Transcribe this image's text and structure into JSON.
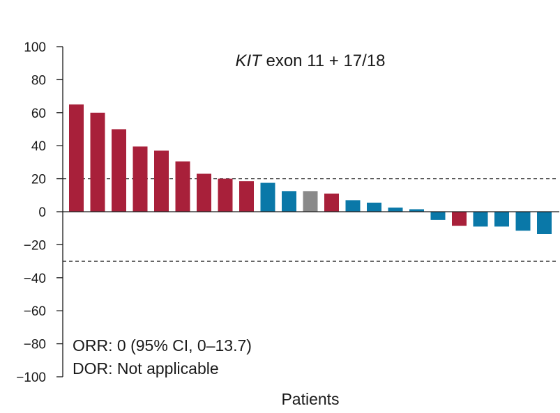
{
  "chart_data": {
    "type": "bar",
    "title": {
      "italic_part": "KIT",
      "rest": " exon 11 + 17/18"
    },
    "xlabel": "Patients",
    "ylabel": "",
    "ylim": [
      -100,
      100
    ],
    "y_ticks": [
      {
        "value": 100,
        "label": "100"
      },
      {
        "value": 80,
        "label": "80"
      },
      {
        "value": 60,
        "label": "60"
      },
      {
        "value": 40,
        "label": "40"
      },
      {
        "value": 20,
        "label": "20"
      },
      {
        "value": 0,
        "label": "0"
      },
      {
        "value": -20,
        "label": "−20"
      },
      {
        "value": -40,
        "label": "−40"
      },
      {
        "value": -60,
        "label": "−60"
      },
      {
        "value": -80,
        "label": "−80"
      },
      {
        "value": -100,
        "label": "−100"
      }
    ],
    "reference_lines": [
      20,
      -30
    ],
    "colors": {
      "red": "#A8203A",
      "blue": "#0A78A8",
      "gray": "#8A8A8A",
      "axis": "#1a1a1a",
      "reference": "#333333"
    },
    "bars": [
      {
        "value": 65,
        "color": "red"
      },
      {
        "value": 60,
        "color": "red"
      },
      {
        "value": 50,
        "color": "red"
      },
      {
        "value": 39.5,
        "color": "red"
      },
      {
        "value": 37,
        "color": "red"
      },
      {
        "value": 30.5,
        "color": "red"
      },
      {
        "value": 23,
        "color": "red"
      },
      {
        "value": 20,
        "color": "red"
      },
      {
        "value": 18.5,
        "color": "red"
      },
      {
        "value": 17.5,
        "color": "blue"
      },
      {
        "value": 12.5,
        "color": "blue"
      },
      {
        "value": 12.5,
        "color": "gray"
      },
      {
        "value": 11,
        "color": "red"
      },
      {
        "value": 7,
        "color": "blue"
      },
      {
        "value": 5.5,
        "color": "blue"
      },
      {
        "value": 2.5,
        "color": "blue"
      },
      {
        "value": 1.5,
        "color": "blue"
      },
      {
        "value": -5,
        "color": "blue"
      },
      {
        "value": -8.5,
        "color": "red"
      },
      {
        "value": -9,
        "color": "blue"
      },
      {
        "value": -9,
        "color": "blue"
      },
      {
        "value": -11.5,
        "color": "blue"
      },
      {
        "value": -13.5,
        "color": "blue"
      }
    ],
    "annotations": {
      "orr": "ORR: 0 (95% CI, 0–13.7)",
      "dor": "DOR: Not applicable"
    }
  }
}
